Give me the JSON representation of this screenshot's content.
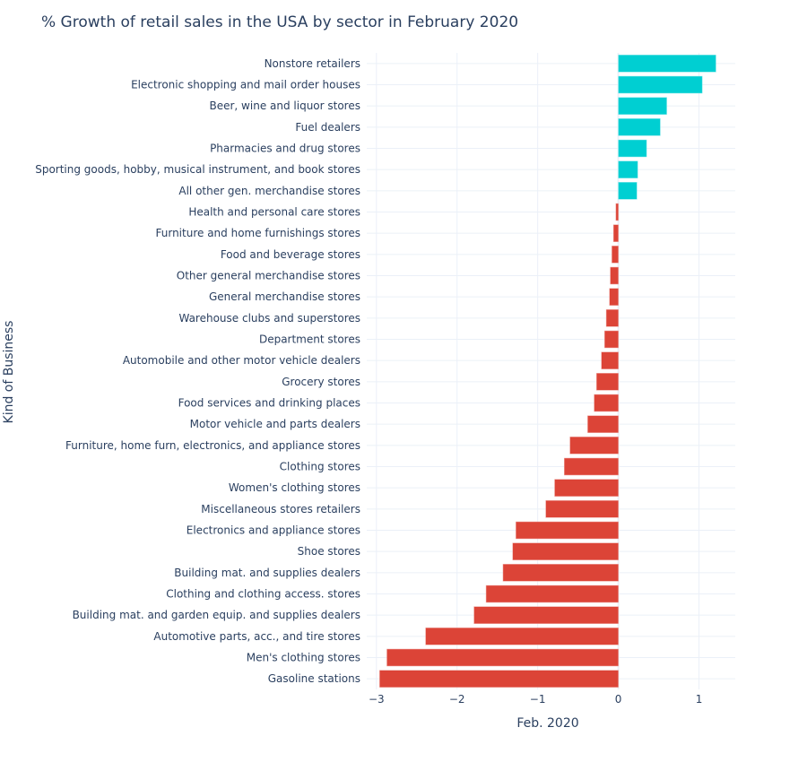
{
  "chart_data": {
    "type": "bar",
    "orientation": "horizontal",
    "title": "% Growth of retail sales in the USA by sector in February 2020",
    "xlabel": "Feb. 2020",
    "ylabel": "Kind of Business",
    "xlim": [
      -3.12,
      1.45
    ],
    "xticks": [
      -3,
      -2,
      -1,
      0,
      1
    ],
    "xtick_labels": [
      "−3",
      "−2",
      "−1",
      "0",
      "1"
    ],
    "grid": true,
    "legend": "none",
    "colors": {
      "positive": "#00cfd2",
      "negative": "#dc4437"
    },
    "categories": [
      "Nonstore retailers",
      "Electronic shopping and mail order houses",
      "Beer, wine and liquor stores",
      "Fuel dealers",
      "Pharmacies and drug stores",
      "Sporting goods, hobby, musical instrument, and book stores",
      "All other gen. merchandise stores",
      "Health and personal care stores",
      "Furniture and home furnishings stores",
      "Food and beverage stores",
      "Other general merchandise stores",
      "General merchandise stores",
      "Warehouse clubs and superstores",
      "Department stores",
      "Automobile and other motor vehicle dealers",
      "Grocery stores",
      "Food services and drinking places",
      "Motor vehicle and parts dealers",
      "Furniture, home furn, electronics, and appliance stores",
      "Clothing stores",
      "Women's clothing stores",
      "Miscellaneous stores retailers",
      "Electronics and appliance stores",
      "Shoe stores",
      "Building mat. and supplies dealers",
      "Clothing and clothing access. stores",
      "Building mat. and garden equip. and supplies dealers",
      "Automotive parts, acc., and tire stores",
      "Men's clothing stores",
      "Gasoline stations"
    ],
    "values": [
      1.21,
      1.04,
      0.6,
      0.52,
      0.35,
      0.24,
      0.23,
      -0.03,
      -0.06,
      -0.08,
      -0.1,
      -0.11,
      -0.15,
      -0.17,
      -0.21,
      -0.27,
      -0.3,
      -0.38,
      -0.6,
      -0.67,
      -0.79,
      -0.9,
      -1.27,
      -1.31,
      -1.43,
      -1.64,
      -1.79,
      -2.39,
      -2.87,
      -2.96
    ]
  }
}
